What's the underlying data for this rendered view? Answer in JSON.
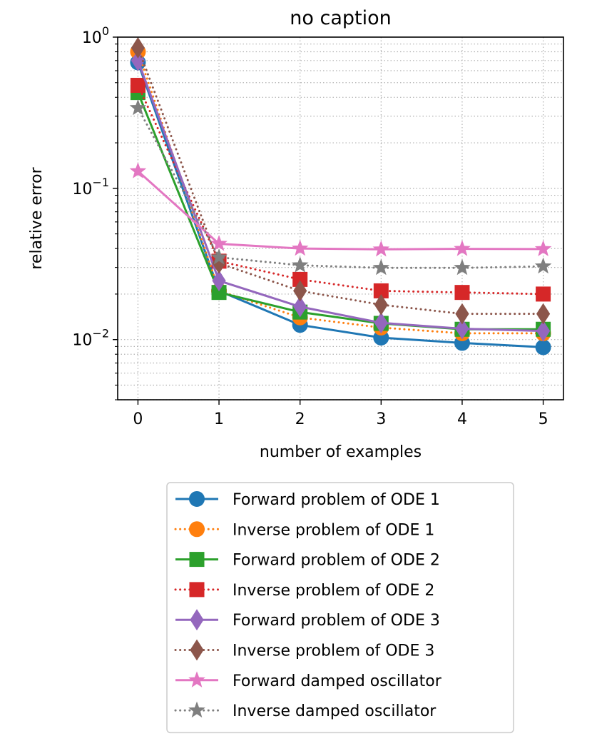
{
  "chart_data": {
    "type": "line",
    "title": "no caption",
    "xlabel": "number of examples",
    "ylabel": "relative error",
    "x": [
      0,
      1,
      2,
      3,
      4,
      5
    ],
    "xlim": [
      -0.25,
      5.25
    ],
    "ylim": [
      0.004,
      1.0
    ],
    "yscale": "log",
    "xticks": [
      "0",
      "1",
      "2",
      "3",
      "4",
      "5"
    ],
    "yticks": [
      {
        "value": 0.01,
        "base": "10",
        "exp": "−2"
      },
      {
        "value": 0.1,
        "base": "10",
        "exp": "−1"
      },
      {
        "value": 1.0,
        "base": "10",
        "exp": "0"
      }
    ],
    "grid": true,
    "legend_position": "below",
    "series": [
      {
        "name": "Forward problem of ODE 1",
        "color": "#1f77b4",
        "marker": "circle",
        "linestyle": "solid",
        "values": [
          0.68,
          0.021,
          0.0125,
          0.0103,
          0.0095,
          0.0089
        ]
      },
      {
        "name": "Inverse problem of ODE 1",
        "color": "#ff7f0e",
        "marker": "circle",
        "linestyle": "dotted",
        "values": [
          0.8,
          0.021,
          0.014,
          0.012,
          0.011,
          0.011
        ]
      },
      {
        "name": "Forward problem of ODE 2",
        "color": "#2ca02c",
        "marker": "square",
        "linestyle": "solid",
        "values": [
          0.43,
          0.0205,
          0.0152,
          0.0128,
          0.0117,
          0.0117
        ]
      },
      {
        "name": "Inverse problem of ODE 2",
        "color": "#d62728",
        "marker": "square",
        "linestyle": "dotted",
        "values": [
          0.48,
          0.033,
          0.025,
          0.021,
          0.0205,
          0.02
        ]
      },
      {
        "name": "Forward problem of ODE 3",
        "color": "#9467bd",
        "marker": "diamond",
        "linestyle": "solid",
        "values": [
          0.7,
          0.0245,
          0.0165,
          0.0129,
          0.0118,
          0.0114
        ]
      },
      {
        "name": "Inverse problem of ODE 3",
        "color": "#8c564b",
        "marker": "diamond",
        "linestyle": "dotted",
        "values": [
          0.85,
          0.032,
          0.021,
          0.017,
          0.0148,
          0.0148
        ]
      },
      {
        "name": "Forward damped oscillator",
        "color": "#e377c2",
        "marker": "star",
        "linestyle": "solid",
        "values": [
          0.13,
          0.043,
          0.04,
          0.0395,
          0.0398,
          0.0397
        ]
      },
      {
        "name": "Inverse damped oscillator",
        "color": "#7f7f7f",
        "marker": "star",
        "linestyle": "dotted",
        "values": [
          0.34,
          0.035,
          0.031,
          0.0298,
          0.0298,
          0.0305
        ]
      }
    ]
  }
}
